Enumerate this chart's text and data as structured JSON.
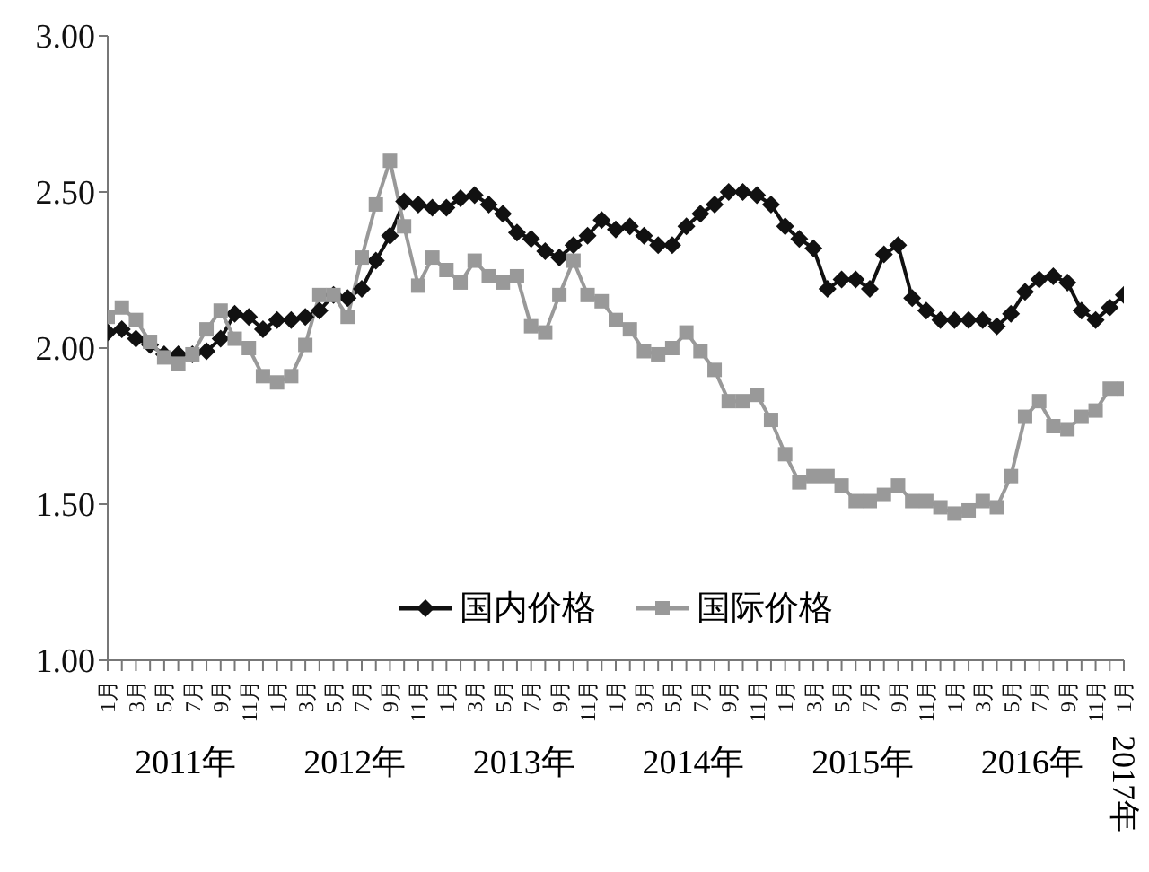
{
  "chart_data": {
    "type": "line",
    "categories": [
      "1月",
      null,
      "3月",
      null,
      "5月",
      null,
      "7月",
      null,
      "9月",
      null,
      "11月",
      null,
      "1月",
      null,
      "3月",
      null,
      "5月",
      null,
      "7月",
      null,
      "9月",
      null,
      "11月",
      null,
      "1月",
      null,
      "3月",
      null,
      "5月",
      null,
      "7月",
      null,
      "9月",
      null,
      "11月",
      null,
      "1月",
      null,
      "3月",
      null,
      "5月",
      null,
      "7月",
      null,
      "9月",
      null,
      "11月",
      null,
      "1月",
      null,
      "3月",
      null,
      "5月",
      null,
      "7月",
      null,
      "9月",
      null,
      "11月",
      null,
      "1月",
      null,
      "3月",
      null,
      "5月",
      null,
      "7月",
      null,
      "9月",
      null,
      "11月",
      null,
      "1月"
    ],
    "series": [
      {
        "name": "国内价格",
        "color": "#111111",
        "marker": "diamond",
        "values": [
          2.05,
          2.06,
          2.03,
          2.01,
          1.98,
          1.98,
          1.98,
          1.99,
          2.03,
          2.11,
          2.1,
          2.06,
          2.09,
          2.09,
          2.1,
          2.12,
          2.17,
          2.16,
          2.19,
          2.28,
          2.36,
          2.47,
          2.46,
          2.45,
          2.45,
          2.48,
          2.49,
          2.46,
          2.43,
          2.37,
          2.35,
          2.31,
          2.29,
          2.33,
          2.36,
          2.41,
          2.38,
          2.39,
          2.36,
          2.33,
          2.33,
          2.39,
          2.43,
          2.46,
          2.5,
          2.5,
          2.49,
          2.46,
          2.39,
          2.35,
          2.32,
          2.19,
          2.22,
          2.22,
          2.19,
          2.3,
          2.33,
          2.16,
          2.12,
          2.09,
          2.09,
          2.09,
          2.09,
          2.07,
          2.11,
          2.18,
          2.22,
          2.23,
          2.21,
          2.12,
          2.09,
          2.13,
          2.17
        ]
      },
      {
        "name": "国际价格",
        "color": "#999999",
        "marker": "square",
        "values": [
          2.1,
          2.13,
          2.09,
          2.02,
          1.97,
          1.95,
          1.98,
          2.06,
          2.12,
          2.03,
          2.0,
          1.91,
          1.89,
          1.91,
          2.01,
          2.17,
          2.17,
          2.1,
          2.29,
          2.46,
          2.6,
          2.39,
          2.2,
          2.29,
          2.25,
          2.21,
          2.28,
          2.23,
          2.21,
          2.23,
          2.07,
          2.05,
          2.17,
          2.28,
          2.17,
          2.15,
          2.09,
          2.06,
          1.99,
          1.98,
          2.0,
          2.05,
          1.99,
          1.93,
          1.83,
          1.83,
          1.85,
          1.77,
          1.66,
          1.57,
          1.59,
          1.59,
          1.56,
          1.51,
          1.51,
          1.53,
          1.56,
          1.51,
          1.51,
          1.49,
          1.47,
          1.48,
          1.51,
          1.49,
          1.59,
          1.78,
          1.83,
          1.75,
          1.74,
          1.78,
          1.8,
          1.87,
          1.87
        ]
      }
    ],
    "ylim": [
      1,
      3
    ],
    "yticks": [
      {
        "value": 1,
        "label": "1.00"
      },
      {
        "value": 1.5,
        "label": "1.50"
      },
      {
        "value": 2,
        "label": "2.00"
      },
      {
        "value": 2.5,
        "label": "2.50"
      },
      {
        "value": 3,
        "label": "3.00"
      }
    ],
    "annotations": [
      "2011年",
      "2012年",
      "2013年",
      "2014年",
      "2015年",
      "2016年",
      "2017年"
    ],
    "legend": "bottom",
    "grid": false,
    "line_style": "solid"
  }
}
